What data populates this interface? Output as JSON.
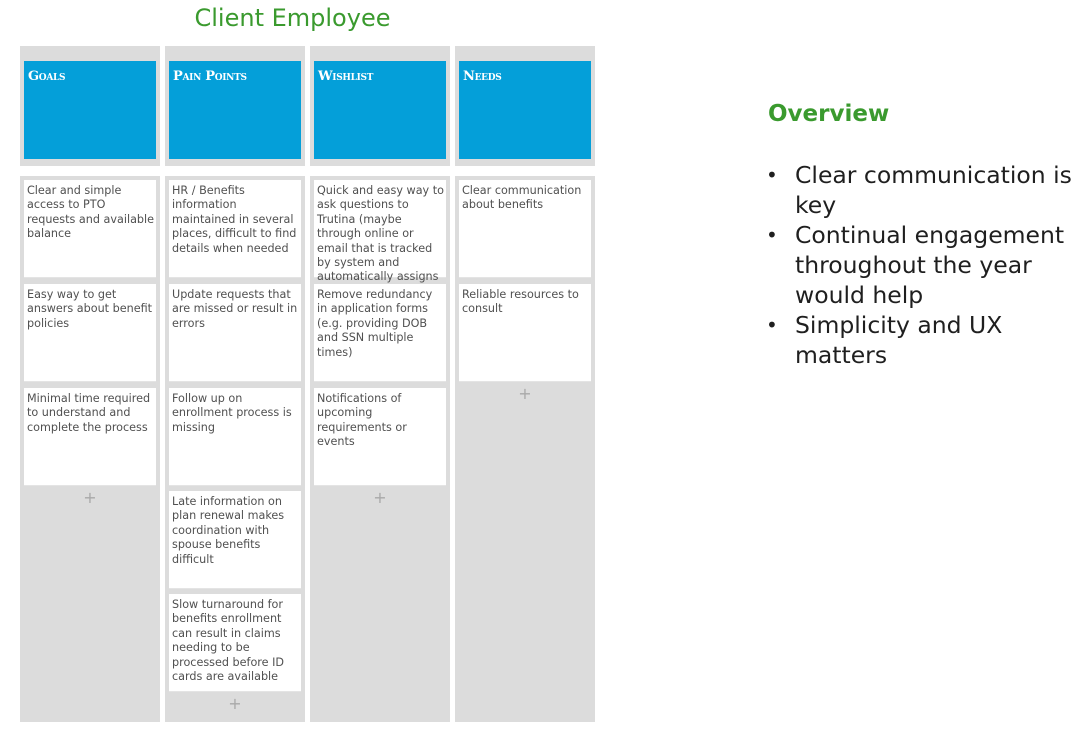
{
  "board": {
    "title": "Client Employee",
    "add_symbol": "+",
    "columns": [
      {
        "label": "Goals",
        "cards": [
          "Clear and simple access to PTO requests and available balance",
          "Easy way to get answers about benefit policies",
          "Minimal time required to understand and complete the process"
        ]
      },
      {
        "label": "Pain Points",
        "cards": [
          "HR / Benefits information maintained in several places, difficult to find details when needed",
          "Update requests that are missed or result in errors",
          "Follow up on enrollment process is missing",
          "Late information on plan renewal makes coordination with spouse benefits difficult",
          "Slow turnaround for benefits enrollment can result in claims needing to be processed before ID cards are available"
        ]
      },
      {
        "label": "Wishlist",
        "cards": [
          "Quick and easy way to ask questions to Trutina (maybe through online or email that is tracked by system and automatically assigns",
          "Remove redundancy in application forms (e.g. providing DOB and SSN multiple times)",
          "Notifications of upcoming requirements or events"
        ]
      },
      {
        "label": "Needs",
        "cards": [
          "Clear communication about benefits",
          "Reliable resources to consult"
        ]
      }
    ]
  },
  "overview": {
    "title": "Overview",
    "bullet": "•",
    "items": [
      "Clear communication is key",
      "Continual engagement throughout the year would help",
      "Simplicity and UX matters"
    ]
  }
}
